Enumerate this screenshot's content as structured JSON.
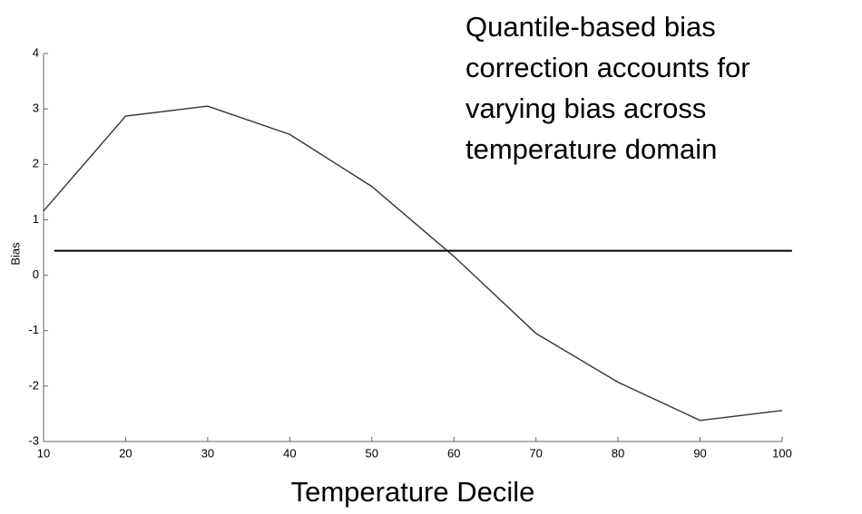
{
  "chart_data": {
    "type": "line",
    "y_label": "Bias",
    "x_label": "Temperature Decile",
    "annotation": [
      "Quantile-based bias",
      "correction accounts for",
      "varying bias across",
      "temperature domain"
    ],
    "series": [
      {
        "color": "#333333",
        "x": [
          10,
          20,
          30,
          40,
          50,
          60,
          70,
          80,
          90,
          100
        ],
        "values": [
          1.16,
          2.87,
          3.05,
          2.54,
          1.6,
          0.34,
          -1.05,
          -1.93,
          -2.62,
          -2.44
        ]
      },
      {
        "color": "#000000",
        "x": [
          11.3,
          101.2
        ],
        "values": [
          0.44,
          0.44
        ]
      }
    ],
    "xlim": [
      10,
      100
    ],
    "xticks": [
      10,
      20,
      30,
      40,
      50,
      60,
      70,
      80,
      90,
      100
    ],
    "ylim": [
      -3,
      4
    ],
    "yticks": [
      -3,
      -2,
      -1,
      0,
      1,
      2,
      3,
      4
    ]
  }
}
